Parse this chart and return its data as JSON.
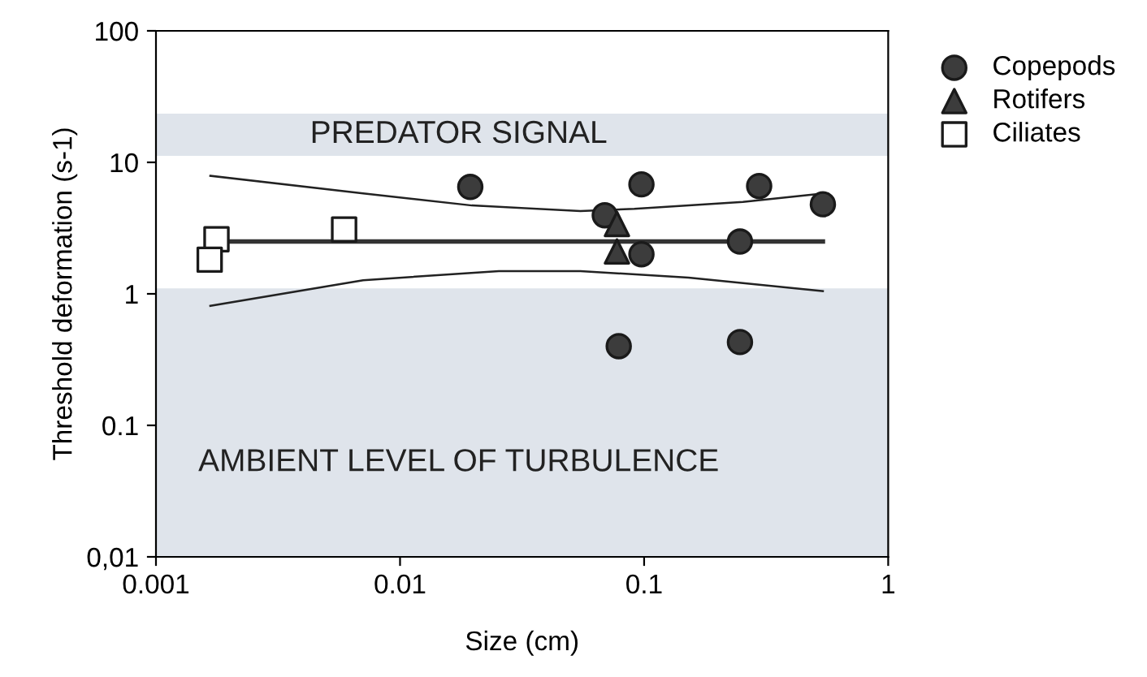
{
  "chart_data": {
    "type": "scatter",
    "xlabel": "Size (cm)",
    "ylabel": "Threshold deformation (s-1)",
    "log": "xy",
    "xlim": [
      0.001,
      1
    ],
    "xticks": [
      0.001,
      0.01,
      0.1,
      1
    ],
    "ylim": [
      0.01,
      100
    ],
    "yticks": [
      {
        "value": 0.01,
        "label": "0,01"
      },
      0.1,
      1,
      10,
      100
    ],
    "grid": false,
    "legend": "top right",
    "bands": [
      {
        "axis": "y",
        "from": 11.2,
        "to": 23.5,
        "label": "PREDATOR SIGNAL",
        "color": "#dfe4eb"
      },
      {
        "axis": "y",
        "from": 0.01,
        "to": 1.1,
        "label": "AMBIENT LEVEL OF TURBULENCE",
        "color": "#dfe4eb"
      }
    ],
    "series": [
      {
        "name": "Copepods",
        "marker": "circle",
        "color": "#3c3c3c",
        "x": [
          0.0194,
          0.0975,
          0.296,
          0.54,
          0.069,
          0.247,
          0.0975,
          0.0787,
          0.247
        ],
        "values": [
          6.5,
          6.8,
          6.6,
          4.8,
          3.96,
          2.5,
          2.0,
          0.4,
          0.43
        ]
      },
      {
        "name": "Rotifers",
        "marker": "triangle",
        "color": "#3c3c3c",
        "x": [
          0.0774,
          0.0774
        ],
        "values": [
          3.4,
          2.1
        ]
      },
      {
        "name": "Ciliates",
        "marker": "square",
        "color": "#ffffff",
        "x": [
          0.00177,
          0.00166,
          0.0059
        ],
        "values": [
          2.6,
          1.82,
          3.09
        ]
      },
      {
        "type": "line",
        "marker": "none",
        "color": "#333333",
        "x": [
          0.00187,
          0.54
        ],
        "values": [
          2.5,
          2.5
        ]
      },
      {
        "type": "line",
        "marker": "none",
        "color": "#222222",
        "x": [
          0.00167,
          0.00706,
          0.0197,
          0.0548,
          0.0912,
          0.254,
          0.54
        ],
        "values": [
          7.9,
          5.8,
          4.7,
          4.26,
          4.43,
          5.0,
          5.8
        ]
      },
      {
        "type": "line",
        "marker": "none",
        "color": "#222222",
        "x": [
          0.00167,
          0.00706,
          0.0254,
          0.0548,
          0.152,
          0.54
        ],
        "values": [
          0.81,
          1.27,
          1.49,
          1.49,
          1.33,
          1.05
        ]
      }
    ]
  }
}
